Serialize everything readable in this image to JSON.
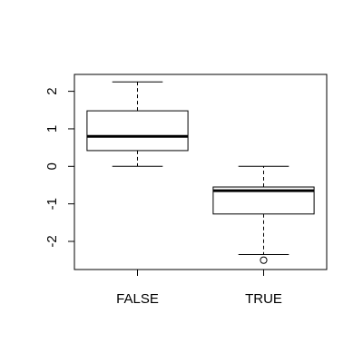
{
  "chart_data": {
    "type": "boxplot",
    "title": "",
    "xlabel": "",
    "ylabel": "",
    "categories": [
      "FALSE",
      "TRUE"
    ],
    "boxes": [
      {
        "category": "FALSE",
        "whisker_low": 0.0,
        "q1": 0.42,
        "median": 0.8,
        "q3": 1.48,
        "whisker_high": 2.25,
        "outliers": []
      },
      {
        "category": "TRUE",
        "whisker_low": -2.35,
        "q1": -1.27,
        "median": -0.65,
        "q3": -0.55,
        "whisker_high": 0.0,
        "outliers": [
          -2.5
        ]
      }
    ],
    "ylim": [
      -2.75,
      2.45
    ],
    "yticks": [
      -2,
      -1,
      0,
      1,
      2
    ],
    "ytick_labels": [
      "-2",
      "-1",
      "0",
      "1",
      "2"
    ],
    "grid": false,
    "legend": "none",
    "colors": {
      "box_fill": "#ffffff",
      "stroke": "#000000",
      "median": "#000000"
    }
  }
}
